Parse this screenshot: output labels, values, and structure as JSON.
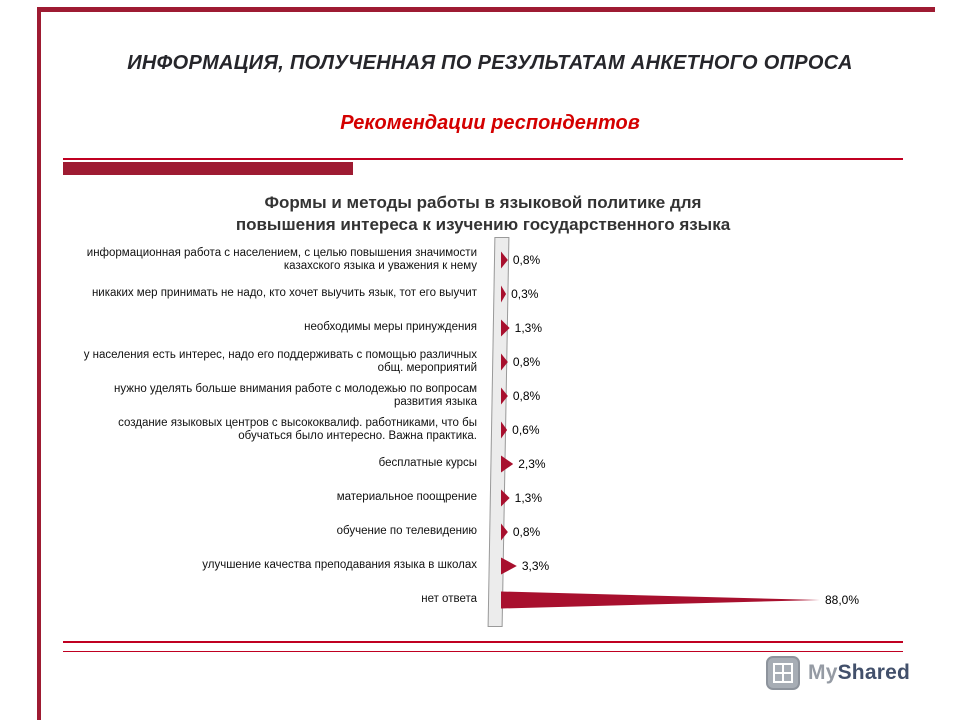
{
  "slide": {
    "title": "ИНФОРМАЦИЯ, ПОЛУЧЕННАЯ ПО РЕЗУЛЬТАТАМ АНКЕТНОГО ОПРОСА",
    "subtitle": "Рекомендации  респондентов"
  },
  "chart_data": {
    "type": "bar",
    "orientation": "horizontal",
    "title": "Формы и методы работы в языковой политике для повышения интереса к изучению государственного языка",
    "title_lines": [
      "Формы и методы работы в языковой политике для",
      "повышения интереса к изучению государственного языка"
    ],
    "categories": [
      "информационная работа с населением, с целью повышения значимости казахского языка и уважения к нему",
      "никаких мер принимать не надо, кто хочет выучить язык, тот его выучит",
      "необходимы меры принуждения",
      "у населения есть интерес, надо его поддерживать с помощью различных общ. мероприятий",
      "нужно уделять больше внимания работе с молодежью по вопросам развития языка",
      "создание языковых центров с высококвалиф. работниками, что бы обучаться было интересно. Важна практика.",
      "бесплатные курсы",
      "материальное поощрение",
      "обучение по телевидению",
      "улучшение качества преподавания языка в школах",
      "нет ответа"
    ],
    "values": [
      0.8,
      0.3,
      1.3,
      0.8,
      0.8,
      0.6,
      2.3,
      1.3,
      0.8,
      3.3,
      88.0
    ],
    "value_labels": [
      "0,8%",
      "0,3%",
      "1,3%",
      "0,8%",
      "0,8%",
      "0,6%",
      "2,3%",
      "1,3%",
      "0,8%",
      "3,3%",
      "88,0%"
    ],
    "xlim": [
      0,
      100
    ],
    "grid": false,
    "legend": "none"
  },
  "colors": {
    "accent_line": "#9E1B32",
    "thin_line": "#C00021",
    "bar": "#A8102E",
    "subtitle": "#D40000",
    "title_text": "#26262B",
    "chart_title_text": "#333333",
    "logo_my": "#959BA4",
    "logo_shared": "#42506B"
  },
  "footer": {
    "brand_my": "My",
    "brand_shared": "Shared"
  }
}
